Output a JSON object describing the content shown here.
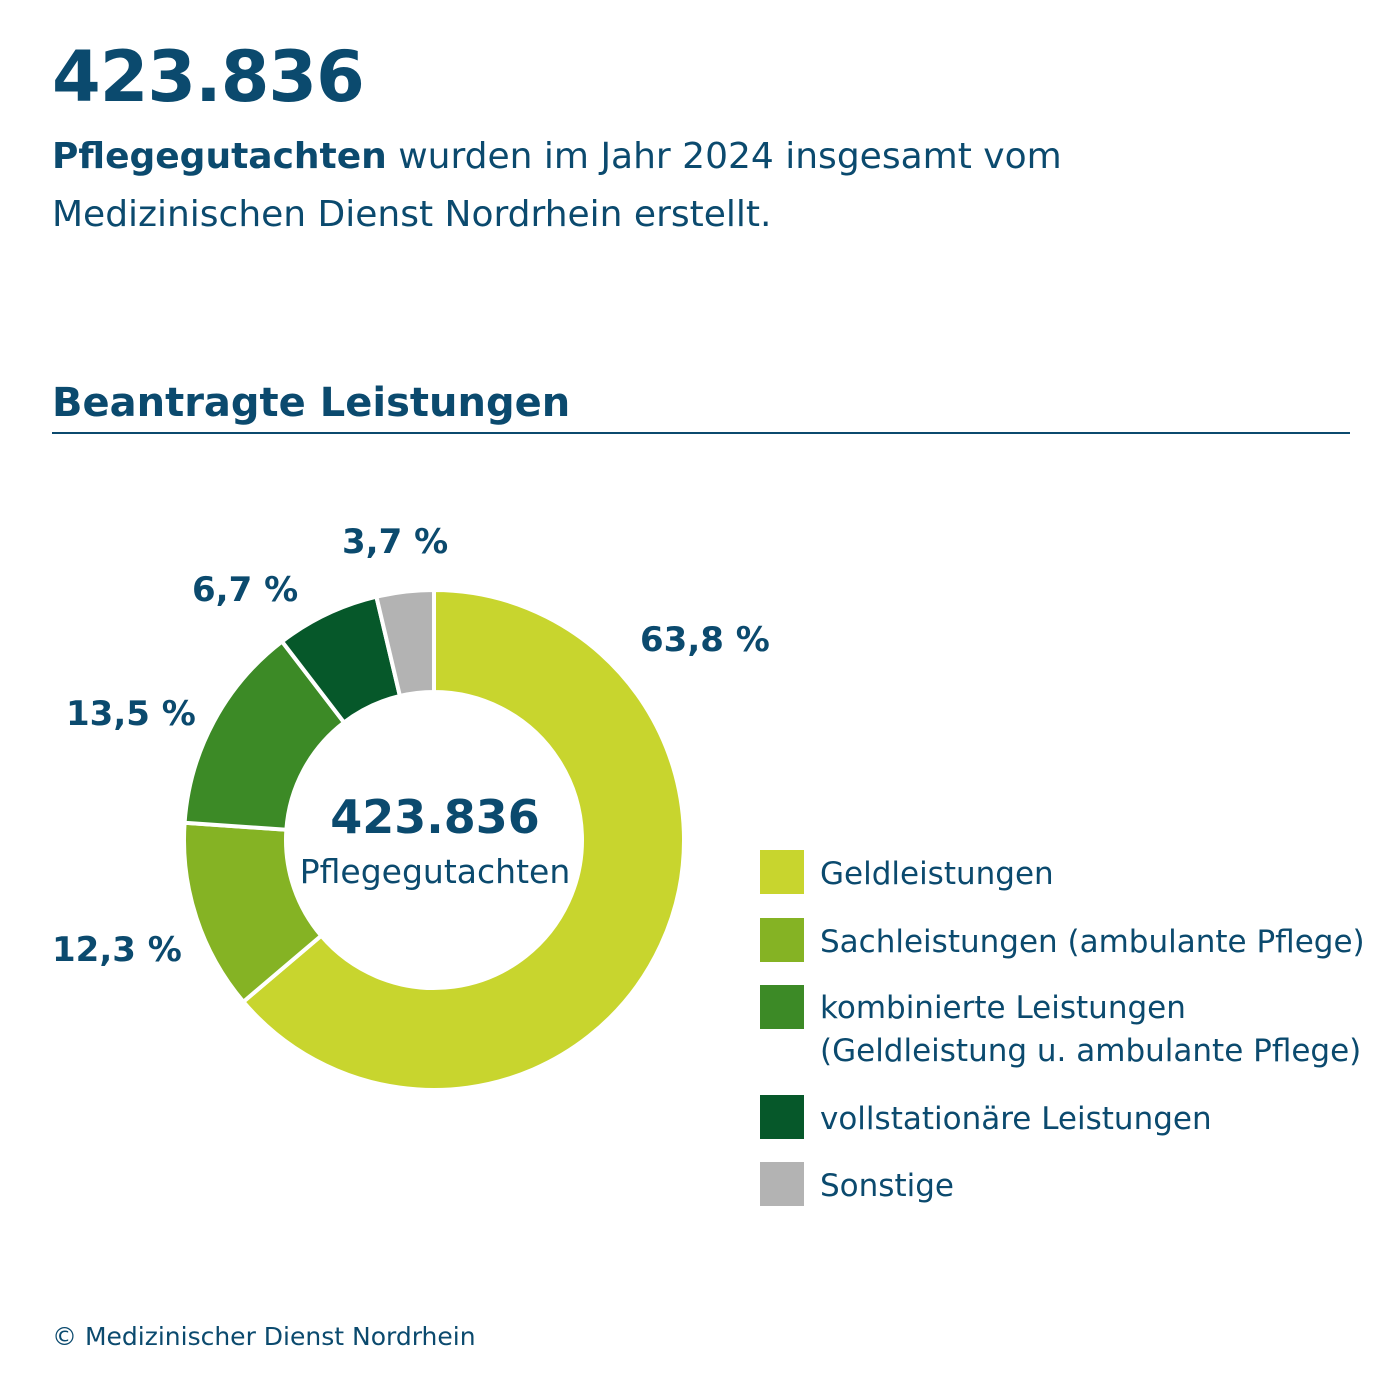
{
  "header": {
    "headline": "423.836",
    "intro_bold": "Pflegegutachten",
    "intro_rest": " wurden im Jahr 2024 insgesamt vom Medizinischen Dienst Nordrhein erstellt."
  },
  "section": {
    "title": "Beantragte Leistungen"
  },
  "chart_data": {
    "type": "pie",
    "title": "Beantragte Leistungen",
    "center_value": "423.836",
    "center_label": "Pflegegutachten",
    "categories": [
      "Geldleistungen",
      "Sachleistungen (ambulante Pflege)",
      "kombinierte Leistungen\n(Geldleistung u. ambulante Pflege)",
      "vollstationäre Leistungen",
      "Sonstige"
    ],
    "values": [
      63.8,
      12.3,
      13.5,
      6.7,
      3.7
    ],
    "value_labels": [
      "63,8 %",
      "12,3 %",
      "13,5 %",
      "6,7 %",
      "3,7 %"
    ],
    "colors": [
      "#c8d52e",
      "#85b324",
      "#3c8a26",
      "#06582a",
      "#b3b3b3"
    ],
    "legend_position": "right"
  },
  "footer": {
    "copyright": "© Medizinischer Dienst Nordrhein"
  }
}
